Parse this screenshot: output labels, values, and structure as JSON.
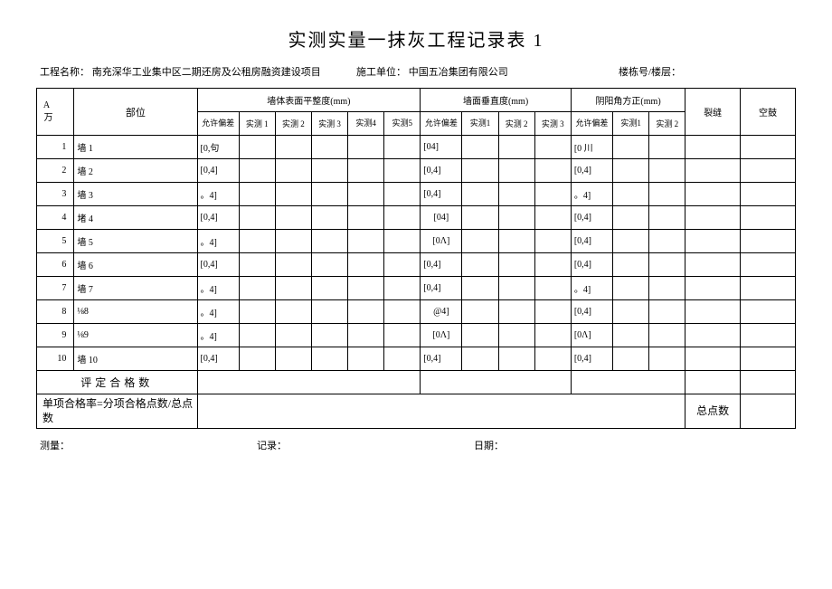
{
  "title": "实测实量一抹灰工程记录表 1",
  "meta": {
    "project_label": "工程名称：",
    "project_value": "南充深华工业集中区二期还房及公租房融资建设项目",
    "builder_label": "施工单位：",
    "builder_value": "中国五冶集团有限公司",
    "floor_label": "楼栋号/楼层："
  },
  "headers": {
    "seq": "A万",
    "part": "部位",
    "group_flat": "墙体表面平整度(mm)",
    "group_vert": "墙面垂直度(mm)",
    "group_angle": "阴阳角方正(mm)",
    "crack": "裂缝",
    "hollow": "空鼓",
    "tol": "允许偏差",
    "m1": "实测 1",
    "m2": "实测 2",
    "m3": "实测 3",
    "m4": "实测4",
    "m5": "实测5",
    "tol_v": "允许偏差",
    "mv1": "实测1",
    "mv2": "实测 2",
    "mv3": "实测 3",
    "tol_a": "允许偏差",
    "ma1": "实测1",
    "ma2": "实测 2"
  },
  "rows": [
    {
      "n": "1",
      "part": "墙 1",
      "tf": "[0,句",
      "tv": "[04]",
      "ta": "[0 川"
    },
    {
      "n": "2",
      "part": "墙 2",
      "tf": "[0,4]",
      "tv": "[0,4]",
      "ta": "[0,4]"
    },
    {
      "n": "3",
      "part": "墙 3",
      "tf": "。4]",
      "tv": "[0,4]",
      "ta": "。4]"
    },
    {
      "n": "4",
      "part": "堵 4",
      "tf": "[0,4]",
      "tv": "[04]",
      "ta": "[0,4]"
    },
    {
      "n": "5",
      "part": "墙 5",
      "tf": "。4]",
      "tv": "[0Λ]",
      "ta": "[0,4]"
    },
    {
      "n": "6",
      "part": "墙 6",
      "tf": "[0,4]",
      "tv": "[0,4]",
      "ta": "[0,4]"
    },
    {
      "n": "7",
      "part": "墙 7",
      "tf": "。4]",
      "tv": "[0,4]",
      "ta": "。4]"
    },
    {
      "n": "8",
      "part": "⅛8",
      "tf": "。4]",
      "tv": "@4]",
      "ta": "[0,4]"
    },
    {
      "n": "9",
      "part": "⅛9",
      "tf": "。4]",
      "tv": "[0Λ]",
      "ta": "[0Λ]"
    },
    {
      "n": "10",
      "part": "墙 10",
      "tf": "[0,4]",
      "tv": "[0,4]",
      "ta": "[0,4]"
    }
  ],
  "eval_row": "评定合格数",
  "rate_row": "单项合格率=分项合格点数/总点数",
  "total_points": "总点数",
  "footer": {
    "measure": "测量：",
    "record": "记录：",
    "date": "日期："
  }
}
